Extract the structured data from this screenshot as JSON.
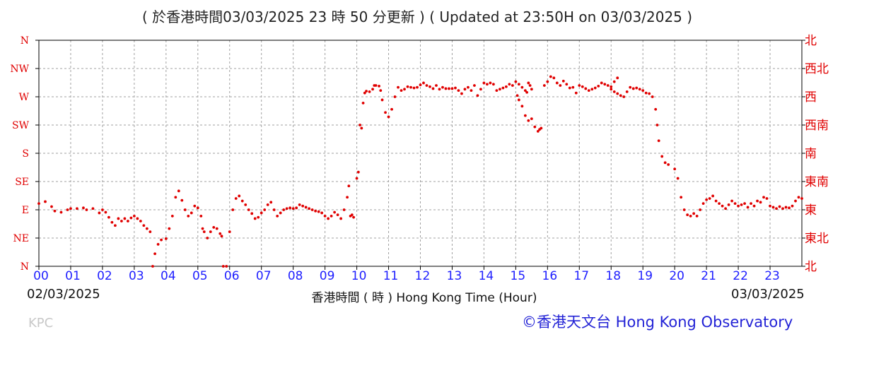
{
  "title": "( 於香港時間03/03/2025 23 時 50 分更新 ) ( Updated at 23:50H on 03/03/2025 )",
  "xlabel": "香港時間 ( 時 )  Hong Kong Time (Hour)",
  "start_date": "02/03/2025",
  "end_date": "03/03/2025",
  "source_code": "KPC",
  "credit": "©香港天文台 Hong Kong Observatory",
  "colors": {
    "data": "#e00000",
    "left_axis": "#e00000",
    "right_axis": "#e00000",
    "bottom_axis": "#1f1fff",
    "grid": "#a0a0a0",
    "credit": "#2323d6"
  },
  "chart_data": {
    "type": "scatter",
    "title": "( 於香港時間03/03/2025 23 時 50 分更新 ) ( Updated at 23:50H on 03/03/2025 )",
    "xlabel": "香港時間 ( 時 )  Hong Kong Time (Hour)",
    "ylabel": "",
    "x_ticks": [
      "00",
      "01",
      "02",
      "03",
      "04",
      "05",
      "06",
      "07",
      "08",
      "09",
      "10",
      "11",
      "12",
      "13",
      "14",
      "15",
      "16",
      "17",
      "18",
      "19",
      "20",
      "21",
      "22",
      "23"
    ],
    "y_ticks_left": [
      "N",
      "NE",
      "E",
      "SE",
      "S",
      "SW",
      "W",
      "NW",
      "N"
    ],
    "y_ticks_right": [
      "北",
      "東北",
      "東",
      "東南",
      "南",
      "西南",
      "西",
      "西北",
      "北"
    ],
    "xlim": [
      0,
      24
    ],
    "ylim": [
      0,
      360
    ],
    "grid": true,
    "series": [
      {
        "points": [
          [
            0.0,
            100
          ],
          [
            0.2,
            103
          ],
          [
            0.4,
            95
          ],
          [
            0.5,
            88
          ],
          [
            0.7,
            86
          ],
          [
            0.9,
            90
          ],
          [
            1.0,
            92
          ],
          [
            1.2,
            92
          ],
          [
            1.4,
            93
          ],
          [
            1.5,
            90
          ],
          [
            1.7,
            92
          ],
          [
            1.9,
            85
          ],
          [
            2.0,
            90
          ],
          [
            2.1,
            86
          ],
          [
            2.2,
            78
          ],
          [
            2.3,
            70
          ],
          [
            2.4,
            65
          ],
          [
            2.5,
            76
          ],
          [
            2.6,
            72
          ],
          [
            2.7,
            76
          ],
          [
            2.8,
            72
          ],
          [
            2.9,
            77
          ],
          [
            3.0,
            80
          ],
          [
            3.1,
            76
          ],
          [
            3.2,
            72
          ],
          [
            3.3,
            65
          ],
          [
            3.4,
            60
          ],
          [
            3.5,
            55
          ],
          [
            3.58,
            0
          ],
          [
            3.65,
            20
          ],
          [
            3.75,
            35
          ],
          [
            3.85,
            42
          ],
          [
            4.0,
            44
          ],
          [
            4.1,
            60
          ],
          [
            4.2,
            80
          ],
          [
            4.3,
            110
          ],
          [
            4.4,
            120
          ],
          [
            4.5,
            105
          ],
          [
            4.6,
            90
          ],
          [
            4.7,
            80
          ],
          [
            4.8,
            85
          ],
          [
            4.9,
            96
          ],
          [
            5.0,
            93
          ],
          [
            5.1,
            80
          ],
          [
            5.15,
            60
          ],
          [
            5.2,
            55
          ],
          [
            5.3,
            45
          ],
          [
            5.4,
            55
          ],
          [
            5.5,
            62
          ],
          [
            5.6,
            60
          ],
          [
            5.7,
            52
          ],
          [
            5.75,
            48
          ],
          [
            5.8,
            0
          ],
          [
            5.9,
            0
          ],
          [
            6.0,
            55
          ],
          [
            6.1,
            90
          ],
          [
            6.2,
            108
          ],
          [
            6.3,
            112
          ],
          [
            6.4,
            104
          ],
          [
            6.5,
            98
          ],
          [
            6.6,
            90
          ],
          [
            6.7,
            84
          ],
          [
            6.8,
            76
          ],
          [
            6.9,
            78
          ],
          [
            7.0,
            85
          ],
          [
            7.1,
            90
          ],
          [
            7.2,
            98
          ],
          [
            7.3,
            102
          ],
          [
            7.4,
            90
          ],
          [
            7.5,
            80
          ],
          [
            7.6,
            85
          ],
          [
            7.7,
            90
          ],
          [
            7.8,
            92
          ],
          [
            7.9,
            93
          ],
          [
            8.0,
            92
          ],
          [
            8.1,
            93
          ],
          [
            8.2,
            98
          ],
          [
            8.3,
            96
          ],
          [
            8.4,
            94
          ],
          [
            8.5,
            92
          ],
          [
            8.6,
            90
          ],
          [
            8.7,
            88
          ],
          [
            8.8,
            87
          ],
          [
            8.9,
            85
          ],
          [
            9.0,
            80
          ],
          [
            9.1,
            76
          ],
          [
            9.2,
            80
          ],
          [
            9.3,
            86
          ],
          [
            9.4,
            82
          ],
          [
            9.5,
            76
          ],
          [
            9.6,
            90
          ],
          [
            9.7,
            110
          ],
          [
            9.75,
            128
          ],
          [
            9.8,
            80
          ],
          [
            9.85,
            82
          ],
          [
            9.9,
            78
          ],
          [
            10.0,
            140
          ],
          [
            10.05,
            150
          ],
          [
            10.1,
            225
          ],
          [
            10.15,
            220
          ],
          [
            10.2,
            260
          ],
          [
            10.25,
            276
          ],
          [
            10.3,
            279
          ],
          [
            10.4,
            278
          ],
          [
            10.5,
            282
          ],
          [
            10.55,
            288
          ],
          [
            10.6,
            288
          ],
          [
            10.7,
            287
          ],
          [
            10.75,
            280
          ],
          [
            10.8,
            265
          ],
          [
            10.9,
            245
          ],
          [
            11.0,
            238
          ],
          [
            11.1,
            250
          ],
          [
            11.2,
            270
          ],
          [
            11.3,
            285
          ],
          [
            11.4,
            280
          ],
          [
            11.5,
            282
          ],
          [
            11.6,
            286
          ],
          [
            11.7,
            285
          ],
          [
            11.8,
            284
          ],
          [
            11.9,
            285
          ],
          [
            12.0,
            289
          ],
          [
            12.1,
            292
          ],
          [
            12.2,
            288
          ],
          [
            12.3,
            286
          ],
          [
            12.4,
            283
          ],
          [
            12.5,
            288
          ],
          [
            12.6,
            282
          ],
          [
            12.7,
            285
          ],
          [
            12.8,
            283
          ],
          [
            12.9,
            283
          ],
          [
            13.0,
            283
          ],
          [
            13.1,
            284
          ],
          [
            13.2,
            280
          ],
          [
            13.3,
            275
          ],
          [
            13.4,
            282
          ],
          [
            13.5,
            285
          ],
          [
            13.6,
            280
          ],
          [
            13.7,
            288
          ],
          [
            13.8,
            272
          ],
          [
            13.9,
            282
          ],
          [
            14.0,
            292
          ],
          [
            14.1,
            290
          ],
          [
            14.2,
            292
          ],
          [
            14.3,
            290
          ],
          [
            14.4,
            280
          ],
          [
            14.5,
            282
          ],
          [
            14.6,
            284
          ],
          [
            14.7,
            286
          ],
          [
            14.8,
            290
          ],
          [
            14.9,
            288
          ],
          [
            15.0,
            294
          ],
          [
            15.1,
            290
          ],
          [
            15.2,
            285
          ],
          [
            15.3,
            280
          ],
          [
            15.35,
            277
          ],
          [
            15.4,
            292
          ],
          [
            15.45,
            288
          ],
          [
            15.5,
            282
          ],
          [
            15.05,
            272
          ],
          [
            15.1,
            265
          ],
          [
            15.2,
            255
          ],
          [
            15.3,
            240
          ],
          [
            15.4,
            232
          ],
          [
            15.5,
            235
          ],
          [
            15.6,
            222
          ],
          [
            15.7,
            215
          ],
          [
            15.75,
            218
          ],
          [
            15.8,
            220
          ],
          [
            15.9,
            288
          ],
          [
            16.0,
            294
          ],
          [
            16.1,
            302
          ],
          [
            16.2,
            300
          ],
          [
            16.3,
            292
          ],
          [
            16.4,
            288
          ],
          [
            16.5,
            295
          ],
          [
            16.6,
            290
          ],
          [
            16.7,
            284
          ],
          [
            16.8,
            285
          ],
          [
            16.9,
            276
          ],
          [
            17.0,
            288
          ],
          [
            17.1,
            286
          ],
          [
            17.2,
            283
          ],
          [
            17.3,
            280
          ],
          [
            17.4,
            282
          ],
          [
            17.5,
            284
          ],
          [
            17.6,
            287
          ],
          [
            17.7,
            292
          ],
          [
            17.8,
            290
          ],
          [
            17.9,
            288
          ],
          [
            18.0,
            286
          ],
          [
            18.1,
            294
          ],
          [
            18.2,
            300
          ],
          [
            18.0,
            282
          ],
          [
            18.1,
            278
          ],
          [
            18.2,
            275
          ],
          [
            18.3,
            272
          ],
          [
            18.4,
            270
          ],
          [
            18.5,
            278
          ],
          [
            18.6,
            285
          ],
          [
            18.7,
            283
          ],
          [
            18.8,
            284
          ],
          [
            18.9,
            282
          ],
          [
            19.0,
            280
          ],
          [
            19.1,
            276
          ],
          [
            19.2,
            275
          ],
          [
            19.3,
            270
          ],
          [
            19.4,
            250
          ],
          [
            19.45,
            225
          ],
          [
            19.5,
            200
          ],
          [
            19.6,
            175
          ],
          [
            19.7,
            165
          ],
          [
            19.8,
            162
          ],
          [
            20.0,
            155
          ],
          [
            20.1,
            140
          ],
          [
            20.2,
            110
          ],
          [
            20.3,
            90
          ],
          [
            20.4,
            82
          ],
          [
            20.5,
            80
          ],
          [
            20.6,
            84
          ],
          [
            20.7,
            80
          ],
          [
            20.8,
            90
          ],
          [
            20.9,
            100
          ],
          [
            21.0,
            106
          ],
          [
            21.1,
            108
          ],
          [
            21.2,
            112
          ],
          [
            21.3,
            104
          ],
          [
            21.4,
            100
          ],
          [
            21.5,
            96
          ],
          [
            21.6,
            92
          ],
          [
            21.7,
            98
          ],
          [
            21.8,
            104
          ],
          [
            21.9,
            100
          ],
          [
            22.0,
            96
          ],
          [
            22.1,
            98
          ],
          [
            22.2,
            100
          ],
          [
            22.3,
            94
          ],
          [
            22.4,
            100
          ],
          [
            22.5,
            96
          ],
          [
            22.6,
            104
          ],
          [
            22.7,
            102
          ],
          [
            22.8,
            110
          ],
          [
            22.9,
            108
          ],
          [
            23.0,
            96
          ],
          [
            23.1,
            94
          ],
          [
            23.2,
            92
          ],
          [
            23.3,
            95
          ],
          [
            23.4,
            92
          ],
          [
            23.5,
            94
          ],
          [
            23.6,
            93
          ],
          [
            23.7,
            96
          ],
          [
            23.8,
            104
          ],
          [
            23.9,
            110
          ],
          [
            24.0,
            108
          ]
        ]
      }
    ]
  }
}
